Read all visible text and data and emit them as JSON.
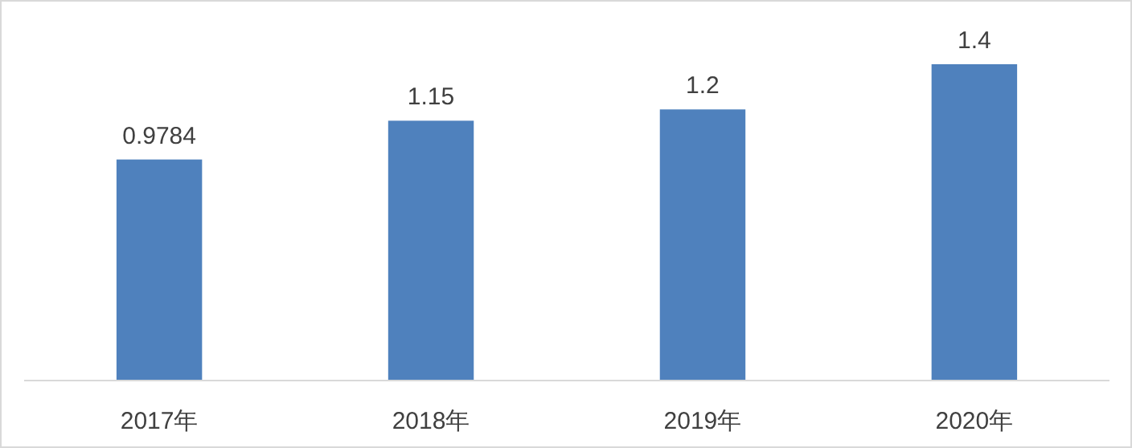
{
  "chart_data": {
    "type": "bar",
    "categories": [
      "2017年",
      "2018年",
      "2019年",
      "2020年"
    ],
    "values": [
      0.9784,
      1.15,
      1.2,
      1.4
    ],
    "color": "#4f81bd",
    "data_labels": true
  }
}
